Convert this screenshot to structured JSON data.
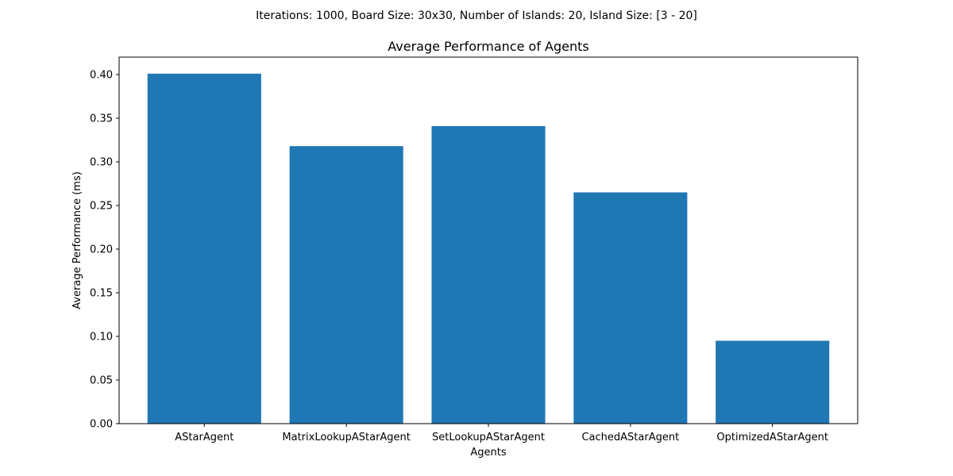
{
  "chart_data": {
    "type": "bar",
    "suptitle": "Iterations: 1000, Board Size: 30x30, Number of Islands: 20, Island Size: [3 - 20]",
    "title": "Average Performance of Agents",
    "xlabel": "Agents",
    "ylabel": "Average Performance (ms)",
    "categories": [
      "AStarAgent",
      "MatrixLookupAStarAgent",
      "SetLookupAStarAgent",
      "CachedAStarAgent",
      "OptimizedAStarAgent"
    ],
    "values": [
      0.401,
      0.318,
      0.341,
      0.265,
      0.095
    ],
    "ylim": [
      0,
      0.42
    ],
    "yticks": [
      "0.00",
      "0.05",
      "0.10",
      "0.15",
      "0.20",
      "0.25",
      "0.30",
      "0.35",
      "0.40"
    ],
    "bar_color": "#1f77b4",
    "grid": false
  }
}
